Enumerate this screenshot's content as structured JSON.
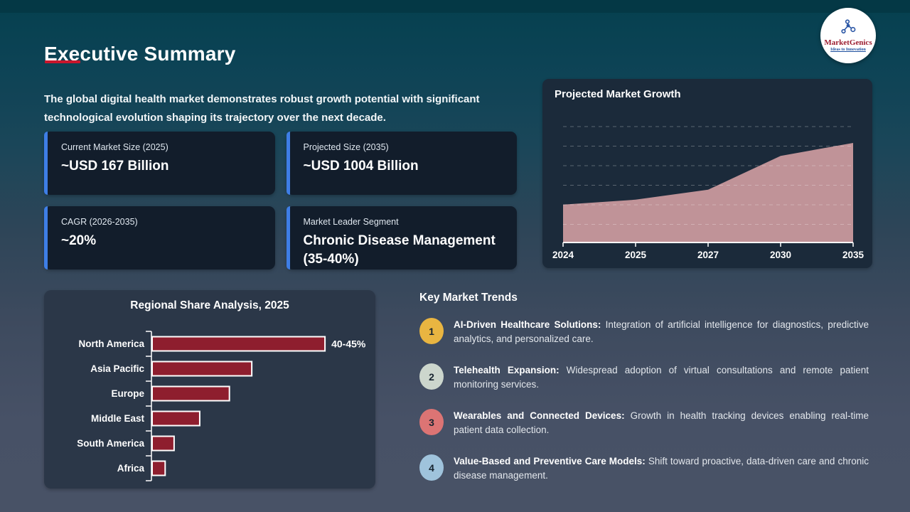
{
  "header": {
    "title": "Executive Summary",
    "intro": "The global digital health market demonstrates robust growth potential with significant technological evolution shaping its trajectory over the next decade."
  },
  "logo": {
    "name": "MarketGenics",
    "tagline": "Ideas to Innovation"
  },
  "colors": {
    "accent_red": "#c9162c",
    "card_accent_blue": "#3e7ee6",
    "area_pink": "#c09398",
    "bar_maroon": "#8e1e2e"
  },
  "stat_cards": [
    {
      "label": "Current Market Size (2025)",
      "value": "~USD 167 Billion"
    },
    {
      "label": "Projected Size (2035)",
      "value": "~USD 1004 Billion"
    },
    {
      "label": "CAGR (2026-2035)",
      "value": "~20%"
    },
    {
      "label": "Market Leader Segment",
      "value": "Chronic Disease Management (35-40%)"
    }
  ],
  "chart_data": [
    {
      "type": "area",
      "title": "Projected Market Growth",
      "x_labels": [
        "2024",
        "2025",
        "2027",
        "2030",
        "2035"
      ],
      "values": [
        38,
        43,
        53,
        87,
        100
      ],
      "y_axis_note": "unlabeled axis; values normalized so 2035 peak = 100",
      "area_color": "#c09398",
      "grid": "dashed horizontal lines",
      "xlabel": "",
      "ylabel": ""
    },
    {
      "type": "bar",
      "orientation": "horizontal",
      "title": "Regional Share Analysis, 2025",
      "categories": [
        "North America",
        "Asia Pacific",
        "Europe",
        "Middle East",
        "South America",
        "Africa"
      ],
      "values": [
        42.5,
        24.5,
        19,
        11.7,
        5.4,
        3.2
      ],
      "value_labels": [
        "40-45%",
        "",
        "",
        "",
        "",
        ""
      ],
      "bar_color": "#8e1e2e",
      "xlim": [
        0,
        50
      ],
      "grid": "off"
    }
  ],
  "trends": {
    "title": "Key Market Trends",
    "items": [
      {
        "number": "1",
        "badge_color": "#e9b541",
        "title": "AI-Driven Healthcare Solutions:",
        "text": "Integration of artificial intelligence for diagnostics, predictive analytics, and personalized care."
      },
      {
        "number": "2",
        "badge_color": "#ccd6cd",
        "title": "Telehealth Expansion:",
        "text": "Widespread adoption of virtual consultations and remote patient monitoring services."
      },
      {
        "number": "3",
        "badge_color": "#dc7474",
        "title": "Wearables and Connected Devices:",
        "text": "Growth in health tracking devices enabling real-time patient data collection."
      },
      {
        "number": "4",
        "badge_color": "#9fc3dc",
        "title": "Value-Based and Preventive Care Models:",
        "text": "Shift toward proactive, data-driven care and chronic disease management."
      }
    ]
  }
}
